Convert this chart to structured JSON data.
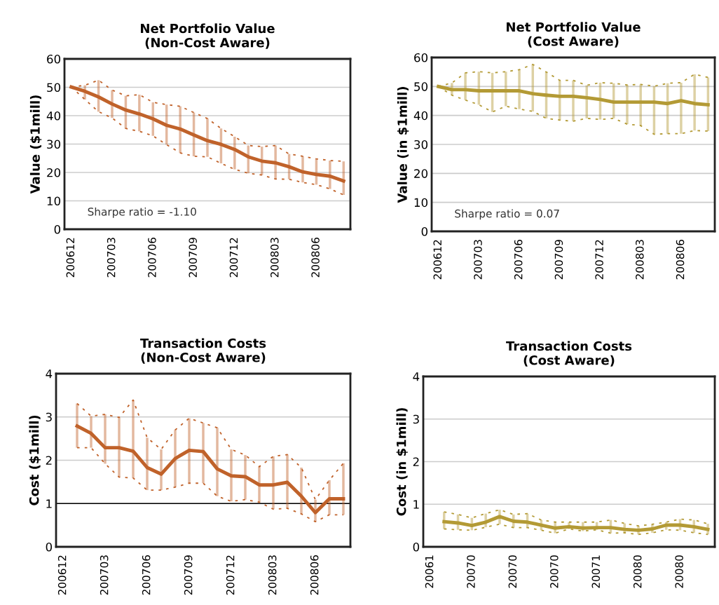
{
  "chart_data": [
    {
      "type": "line",
      "title": "Net Portfolio Value\n(Non-Cost Aware)",
      "ylabel": "Value ($1mill)",
      "categories": [
        "200612",
        null,
        null,
        "200703",
        null,
        null,
        "200706",
        null,
        null,
        "200709",
        null,
        null,
        "200712",
        null,
        null,
        "200803",
        null,
        null,
        "200806",
        null,
        null
      ],
      "ylim": [
        0,
        60
      ],
      "yticks": [
        0,
        10,
        20,
        30,
        40,
        50,
        60
      ],
      "grid": "y",
      "annotations": [
        "Sharpe ratio = -1.10"
      ],
      "series": [
        {
          "color": "#c0622a",
          "values": [
            50.1,
            48.6,
            46.6,
            44.1,
            42,
            40.6,
            38.9,
            36.6,
            35.3,
            33.2,
            31.2,
            29.9,
            28.1,
            25.5,
            24,
            23.4,
            22,
            20.2,
            19.3,
            18.7,
            17
          ],
          "errors": [
            null,
            [
              45.7,
              50.7
            ],
            [
              41.4,
              52.5
            ],
            [
              39.2,
              49
            ],
            [
              35.5,
              47
            ],
            [
              34.5,
              47.4
            ],
            [
              32.9,
              44.7
            ],
            [
              29.8,
              43.9
            ],
            [
              26.9,
              43.3
            ],
            [
              25.7,
              41.1
            ],
            [
              25.5,
              39
            ],
            [
              23.2,
              35.5
            ],
            [
              21.1,
              32.6
            ],
            [
              19.7,
              29.5
            ],
            [
              19.1,
              29.1
            ],
            [
              17.7,
              29.5
            ],
            [
              17.6,
              26.5
            ],
            [
              16.5,
              25.7
            ],
            [
              15.7,
              24.8
            ],
            [
              14.2,
              24.2
            ],
            [
              12.1,
              23.9
            ]
          ]
        },
        {
          "color": "#c0622a",
          "line_style": "dotted",
          "values": [
            50.1,
            45.7,
            41.4,
            39.2,
            35.5,
            34.5,
            32.9,
            29.8,
            26.9,
            25.7,
            25.5,
            23.2,
            21.1,
            19.7,
            19.1,
            17.7,
            17.6,
            16.5,
            15.7,
            14.2,
            12.1
          ]
        },
        {
          "color": "#c0622a",
          "line_style": "dotted",
          "values": [
            50.1,
            50.7,
            52.5,
            49,
            47,
            47.4,
            44.7,
            43.9,
            43.3,
            41.1,
            39,
            35.5,
            32.6,
            29.5,
            29.1,
            29.5,
            26.5,
            25.7,
            24.8,
            24.2,
            23.9
          ]
        }
      ]
    },
    {
      "type": "line",
      "title": "Net Portfolio Value\n(Cost Aware)",
      "ylabel": "Value (in $1mill)",
      "categories": [
        "200612",
        null,
        null,
        "200703",
        null,
        null,
        "200706",
        null,
        null,
        "200709",
        null,
        null,
        "200712",
        null,
        null,
        "200803",
        null,
        null,
        "200806",
        null,
        null
      ],
      "ylim": [
        0,
        60
      ],
      "yticks": [
        0,
        10,
        20,
        30,
        40,
        50,
        60
      ],
      "grid": "y",
      "annotations": [
        "Sharpe ratio = 0.07"
      ],
      "series": [
        {
          "color": "#b39a35",
          "values": [
            50,
            48.9,
            48.9,
            48.5,
            48.5,
            48.5,
            48.5,
            47.5,
            47,
            46.6,
            46.6,
            46.1,
            45.5,
            44.6,
            44.6,
            44.6,
            44.6,
            44.1,
            45.1,
            44.1,
            43.7
          ],
          "errors": [
            null,
            [
              47,
              51.2
            ],
            [
              45.3,
              54.7
            ],
            [
              43.7,
              55.1
            ],
            [
              41.2,
              54.7
            ],
            [
              43.2,
              55.1
            ],
            [
              42.2,
              55.8
            ],
            [
              41.4,
              57.6
            ],
            [
              39,
              55
            ],
            [
              38.4,
              52.1
            ],
            [
              38,
              52.1
            ],
            [
              39,
              50.4
            ],
            [
              38.6,
              51.3
            ],
            [
              39,
              51.1
            ],
            [
              37,
              50.5
            ],
            [
              36.5,
              50.7
            ],
            [
              33.5,
              50.1
            ],
            [
              33.7,
              51.1
            ],
            [
              33.7,
              51.3
            ],
            [
              34.8,
              54.2
            ],
            [
              34.6,
              53.1
            ]
          ]
        },
        {
          "color": "#b39a35",
          "line_style": "dotted",
          "values": [
            50,
            47,
            45.3,
            43.7,
            41.2,
            43.2,
            42.2,
            41.4,
            39,
            38.4,
            38,
            39,
            38.6,
            39,
            37,
            36.5,
            33.5,
            33.7,
            33.7,
            34.8,
            34.6
          ]
        },
        {
          "color": "#b39a35",
          "line_style": "dotted",
          "values": [
            50,
            51.2,
            54.7,
            55.1,
            54.7,
            55.1,
            55.8,
            57.6,
            55,
            52.1,
            52.1,
            50.4,
            51.3,
            51.1,
            50.5,
            50.7,
            50.1,
            51.1,
            51.3,
            54.2,
            53.1
          ]
        }
      ]
    },
    {
      "type": "line",
      "title": "Transaction Costs\n(Non-Cost Aware)",
      "ylabel": "Cost ($1mill)",
      "categories": [
        "200612",
        null,
        null,
        "200703",
        null,
        null,
        "200706",
        null,
        null,
        "200709",
        null,
        null,
        "200712",
        null,
        null,
        "200803",
        null,
        null,
        "200806",
        null,
        null
      ],
      "ylim": [
        0,
        4
      ],
      "yticks": [
        0,
        1,
        2,
        3,
        4
      ],
      "grid": "y",
      "ref_lines": [
        {
          "axis": "y",
          "value": 1,
          "color": "#000000"
        }
      ],
      "series": [
        {
          "color": "#c0622a",
          "values": [
            null,
            2.79,
            2.62,
            2.29,
            2.29,
            2.21,
            1.83,
            1.68,
            2.04,
            2.23,
            2.2,
            1.8,
            1.64,
            1.62,
            1.43,
            1.43,
            1.49,
            1.17,
            0.79,
            1.11,
            1.11
          ],
          "errors": [
            null,
            [
              2.29,
              3.31
            ],
            [
              2.29,
              3.02
            ],
            [
              1.92,
              3.06
            ],
            [
              1.61,
              2.99
            ],
            [
              1.59,
              3.39
            ],
            [
              1.31,
              2.52
            ],
            [
              1.31,
              2.25
            ],
            [
              1.38,
              2.7
            ],
            [
              1.47,
              2.97
            ],
            [
              1.47,
              2.86
            ],
            [
              1.17,
              2.75
            ],
            [
              1.05,
              2.25
            ],
            [
              1.09,
              2.12
            ],
            [
              1.03,
              1.85
            ],
            [
              0.87,
              2.09
            ],
            [
              0.89,
              2.13
            ],
            [
              0.76,
              1.83
            ],
            [
              0.58,
              1.09
            ],
            [
              0.74,
              1.54
            ],
            [
              0.74,
              1.93
            ]
          ]
        },
        {
          "color": "#c0622a",
          "line_style": "dotted",
          "values": [
            null,
            2.29,
            2.29,
            1.92,
            1.61,
            1.59,
            1.31,
            1.31,
            1.38,
            1.47,
            1.47,
            1.17,
            1.05,
            1.09,
            1.03,
            0.87,
            0.89,
            0.76,
            0.58,
            0.74,
            0.74
          ]
        },
        {
          "color": "#c0622a",
          "line_style": "dotted",
          "values": [
            null,
            3.31,
            3.02,
            3.06,
            2.99,
            3.39,
            2.52,
            2.25,
            2.7,
            2.97,
            2.86,
            2.75,
            2.25,
            2.12,
            1.85,
            2.09,
            2.13,
            1.83,
            1.09,
            1.54,
            1.93
          ]
        }
      ]
    },
    {
      "type": "line",
      "title": "Transaction Costs\n(Cost Aware)",
      "ylabel": "Cost (in $1mill)",
      "categories": [
        "20061",
        null,
        null,
        "20070",
        null,
        null,
        "20070",
        null,
        null,
        "20070",
        null,
        null,
        "20071",
        null,
        null,
        "20080",
        null,
        null,
        "20080",
        null,
        null
      ],
      "ylim": [
        0,
        4
      ],
      "yticks": [
        0,
        1,
        2,
        3,
        4
      ],
      "grid": "y",
      "series": [
        {
          "color": "#b39a35",
          "values": [
            null,
            0.59,
            0.56,
            0.5,
            0.58,
            0.71,
            0.6,
            0.58,
            0.51,
            0.44,
            0.47,
            0.44,
            0.45,
            0.45,
            0.41,
            0.39,
            0.42,
            0.51,
            0.51,
            0.47,
            0.41
          ],
          "errors": [
            null,
            [
              0.42,
              0.82
            ],
            [
              0.4,
              0.76
            ],
            [
              0.39,
              0.68
            ],
            [
              0.46,
              0.78
            ],
            [
              0.53,
              0.87
            ],
            [
              0.45,
              0.76
            ],
            [
              0.45,
              0.78
            ],
            [
              0.39,
              0.63
            ],
            [
              0.32,
              0.58
            ],
            [
              0.42,
              0.58
            ],
            [
              0.37,
              0.58
            ],
            [
              0.4,
              0.58
            ],
            [
              0.32,
              0.63
            ],
            [
              0.33,
              0.55
            ],
            [
              0.29,
              0.49
            ],
            [
              0.33,
              0.53
            ],
            [
              0.4,
              0.58
            ],
            [
              0.39,
              0.65
            ],
            [
              0.33,
              0.63
            ],
            [
              0.29,
              0.54
            ]
          ]
        },
        {
          "color": "#b39a35",
          "line_style": "dotted",
          "values": [
            null,
            0.42,
            0.4,
            0.39,
            0.46,
            0.53,
            0.45,
            0.45,
            0.39,
            0.32,
            0.42,
            0.37,
            0.4,
            0.32,
            0.33,
            0.29,
            0.33,
            0.4,
            0.39,
            0.33,
            0.29
          ]
        },
        {
          "color": "#b39a35",
          "line_style": "dotted",
          "values": [
            null,
            0.82,
            0.76,
            0.68,
            0.78,
            0.87,
            0.76,
            0.78,
            0.63,
            0.58,
            0.58,
            0.58,
            0.58,
            0.63,
            0.55,
            0.49,
            0.53,
            0.58,
            0.65,
            0.63,
            0.54
          ]
        }
      ]
    }
  ]
}
